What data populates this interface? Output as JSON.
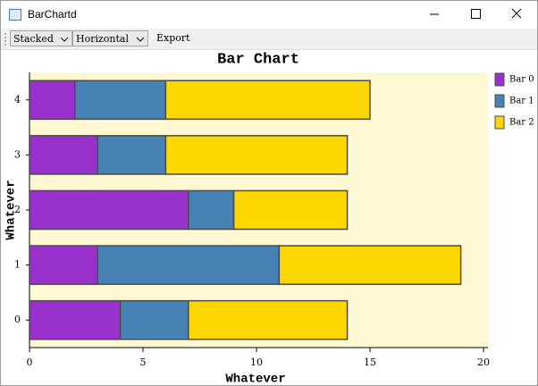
{
  "window": {
    "title": "BarChartd"
  },
  "toolbar": {
    "stack_mode": "Stacked",
    "orientation": "Horizontal",
    "export": "Export"
  },
  "chart_data": {
    "type": "bar",
    "orientation": "horizontal",
    "stacked": true,
    "title": "Bar Chart",
    "xlabel": "Whatever",
    "ylabel": "Whatever",
    "categories": [
      "0",
      "1",
      "2",
      "3",
      "4"
    ],
    "series": [
      {
        "name": "Bar 0",
        "color": "#9932cc",
        "values": [
          4,
          3,
          7,
          3,
          2
        ]
      },
      {
        "name": "Bar 1",
        "color": "#4682b4",
        "values": [
          3,
          8,
          2,
          3,
          4
        ]
      },
      {
        "name": "Bar 2",
        "color": "#ffd700",
        "values": [
          7,
          8,
          5,
          8,
          9
        ]
      }
    ],
    "xlim": [
      0,
      20
    ],
    "xticks": [
      0,
      5,
      10,
      15,
      20
    ],
    "legend": "right",
    "background": "#fff8d2"
  }
}
